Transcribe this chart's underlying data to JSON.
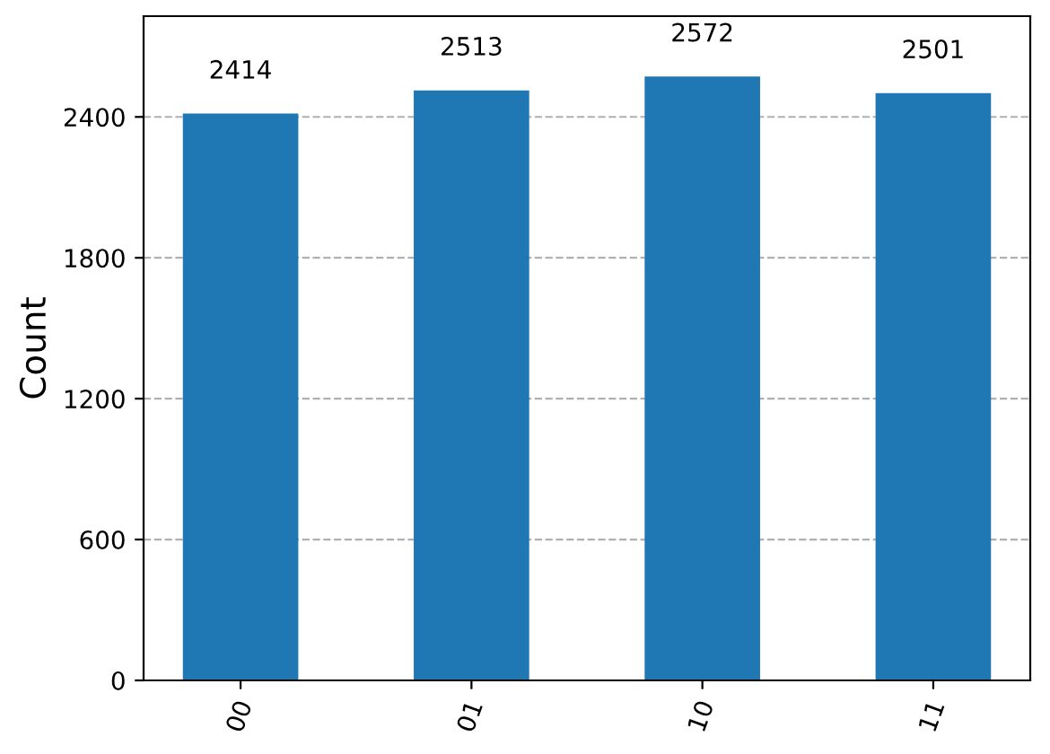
{
  "chart_data": {
    "type": "bar",
    "ylabel": "Count",
    "categories": [
      "00",
      "01",
      "10",
      "11"
    ],
    "values": [
      2414,
      2513,
      2572,
      2501
    ],
    "color": "#1f77b4",
    "ylim": [
      0,
      2829.2
    ],
    "yticks": [
      0,
      600,
      1200,
      1800,
      2400
    ],
    "grid": "y",
    "data_labels": true
  }
}
